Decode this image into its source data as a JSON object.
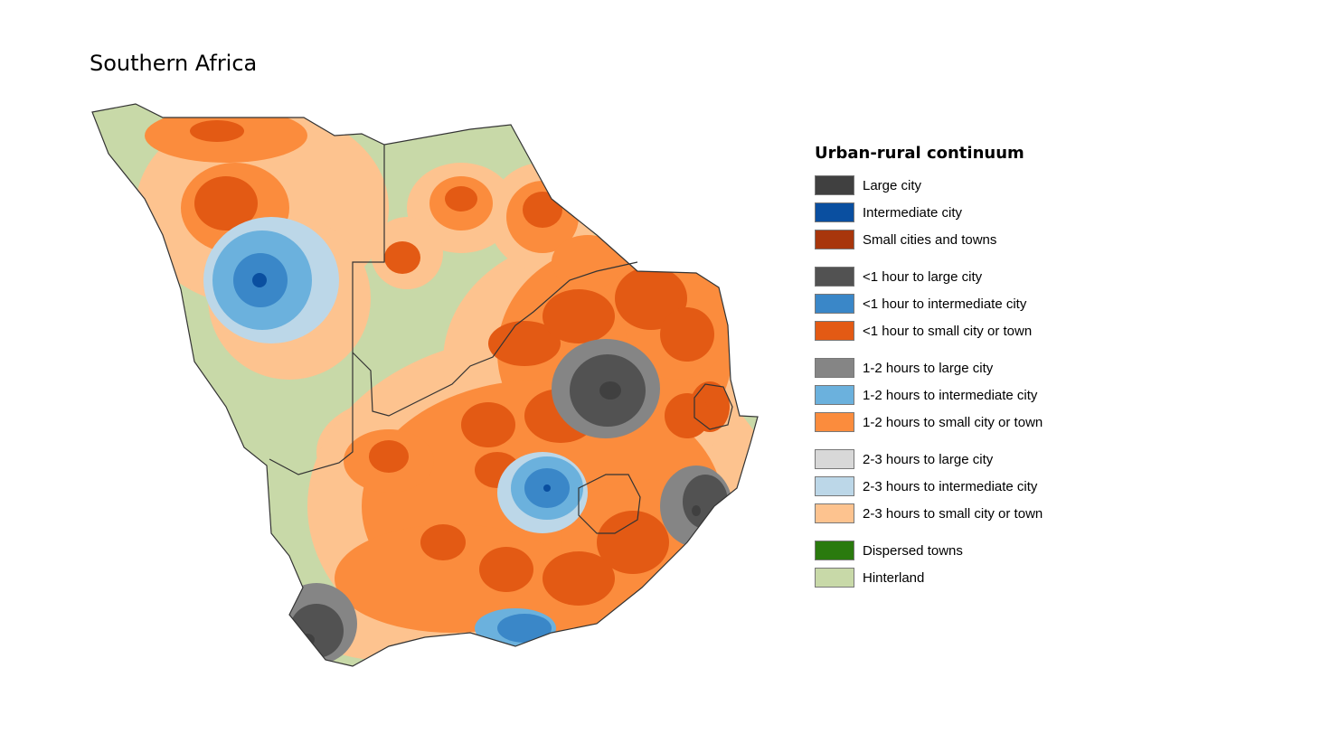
{
  "title": "Southern Africa",
  "legend": {
    "title": "Urban-rural continuum",
    "groups": [
      {
        "items": [
          {
            "label": "Large city",
            "color": "#404040"
          },
          {
            "label": "Intermediate city",
            "color": "#0a4fa0"
          },
          {
            "label": "Small cities and towns",
            "color": "#a8360c"
          }
        ]
      },
      {
        "items": [
          {
            "label": "<1 hour to large city",
            "color": "#525252"
          },
          {
            "label": "<1 hour to intermediate city",
            "color": "#3a87c8"
          },
          {
            "label": "<1 hour to small city or town",
            "color": "#e35a14"
          }
        ]
      },
      {
        "items": [
          {
            "label": "1-2 hours to large city",
            "color": "#858585"
          },
          {
            "label": "1-2 hours to intermediate city",
            "color": "#6bb1dd"
          },
          {
            "label": "1-2 hours to small city or town",
            "color": "#fb8c3d"
          }
        ]
      },
      {
        "items": [
          {
            "label": "2-3 hours to large city",
            "color": "#d8d8d8"
          },
          {
            "label": "2-3 hours to intermediate city",
            "color": "#bcd7e8"
          },
          {
            "label": "2-3 hours to small city or town",
            "color": "#fdc38f"
          }
        ]
      },
      {
        "items": [
          {
            "label": "Dispersed towns",
            "color": "#2a7a0e"
          },
          {
            "label": "Hinterland",
            "color": "#c8d9a8"
          }
        ]
      }
    ]
  }
}
